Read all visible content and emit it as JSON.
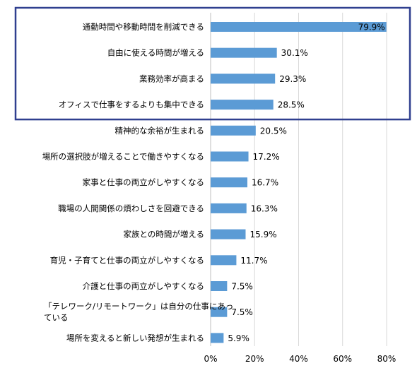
{
  "chart_data": {
    "type": "bar",
    "orientation": "horizontal",
    "categories": [
      "通勤時間や移動時間を削減できる",
      "自由に使える時間が増える",
      "業務効率が高まる",
      "オフィスで仕事をするよりも集中できる",
      "精神的な余裕が生まれる",
      "場所の選択肢が増えることで働きやすくなる",
      "家事と仕事の両立がしやすくなる",
      "職場の人間関係の煩わしさを回避できる",
      "家族との時間が増える",
      "育児・子育てと仕事の両立がしやすくなる",
      "介護と仕事の両立がしやすくなる",
      "「テレワーク/リモートワーク」は自分の仕事にあっている",
      "場所を変えると新しい発想が生まれる"
    ],
    "category_lines": [
      [
        "通勤時間や移動時間を削減できる"
      ],
      [
        "自由に使える時間が増える"
      ],
      [
        "業務効率が高まる"
      ],
      [
        "オフィスで仕事をするよりも集中できる"
      ],
      [
        "精神的な余裕が生まれる"
      ],
      [
        "場所の選択肢が増えることで働きやすくなる"
      ],
      [
        "家事と仕事の両立がしやすくなる"
      ],
      [
        "職場の人間関係の煩わしさを回避できる"
      ],
      [
        "家族との時間が増える"
      ],
      [
        "育児・子育てと仕事の両立がしやすくなる"
      ],
      [
        "介護と仕事の両立がしやすくなる"
      ],
      [
        "「テレワーク/リモートワーク」は自分の仕事にあっ",
        "ている"
      ],
      [
        "場所を変えると新しい発想が生まれる"
      ]
    ],
    "values": [
      79.9,
      30.1,
      29.3,
      28.5,
      20.5,
      17.2,
      16.7,
      16.3,
      15.9,
      11.7,
      7.5,
      7.5,
      5.9
    ],
    "value_labels": [
      "79.9%",
      "30.1%",
      "29.3%",
      "28.5%",
      "20.5%",
      "17.2%",
      "16.7%",
      "16.3%",
      "15.9%",
      "11.7%",
      "7.5%",
      "7.5%",
      "5.9%"
    ],
    "xlim": [
      0,
      80
    ],
    "xticks": [
      0,
      20,
      40,
      60,
      80
    ],
    "xtick_labels": [
      "0%",
      "20%",
      "40%",
      "60%",
      "80%"
    ],
    "grid": "vertical",
    "highlight": {
      "first_index": 0,
      "last_index": 3
    },
    "colors": {
      "bar": "#5b9bd5",
      "grid": "#d9d9d9",
      "axis": "#bfbfbf",
      "highlight_border": "#2f3f8f"
    }
  }
}
